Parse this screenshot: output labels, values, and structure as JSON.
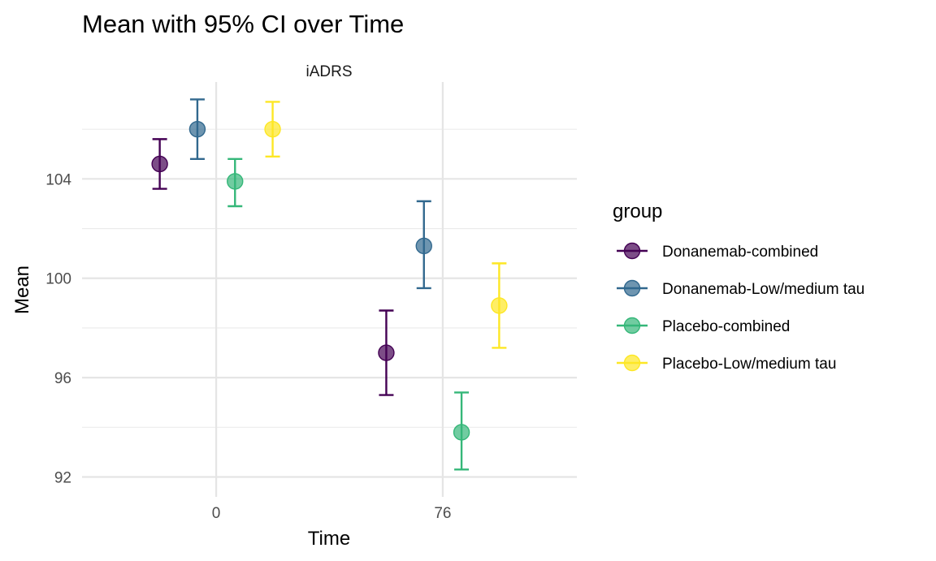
{
  "chart_data": {
    "type": "scatter",
    "title": "Mean with 95% CI over Time",
    "panel_label": "iADRS",
    "xlabel": "Time",
    "ylabel": "Mean",
    "x_ticks": [
      0,
      76
    ],
    "y_ticks": [
      92,
      96,
      100,
      104
    ],
    "xlim": [
      -45,
      121
    ],
    "ylim": [
      91.2,
      107.9
    ],
    "grid": true,
    "legend_title": "group",
    "legend_position": "right",
    "series": [
      {
        "name": "Donanemab-combined",
        "color": "#440154",
        "points": [
          {
            "x": 0,
            "mean": 104.6,
            "lower": 103.6,
            "upper": 105.6
          },
          {
            "x": 76,
            "mean": 97.0,
            "lower": 95.3,
            "upper": 98.7
          }
        ]
      },
      {
        "name": "Donanemab-Low/medium tau",
        "color": "#31688E",
        "points": [
          {
            "x": 0,
            "mean": 106.0,
            "lower": 104.8,
            "upper": 107.2
          },
          {
            "x": 76,
            "mean": 101.3,
            "lower": 99.6,
            "upper": 103.1
          }
        ]
      },
      {
        "name": "Placebo-combined",
        "color": "#35B779",
        "points": [
          {
            "x": 0,
            "mean": 103.9,
            "lower": 102.9,
            "upper": 104.8
          },
          {
            "x": 76,
            "mean": 93.8,
            "lower": 92.3,
            "upper": 95.4
          }
        ]
      },
      {
        "name": "Placebo-Low/medium tau",
        "color": "#FDE725",
        "points": [
          {
            "x": 0,
            "mean": 106.0,
            "lower": 104.9,
            "upper": 107.1
          },
          {
            "x": 76,
            "mean": 98.9,
            "lower": 97.2,
            "upper": 100.6
          }
        ]
      }
    ]
  }
}
